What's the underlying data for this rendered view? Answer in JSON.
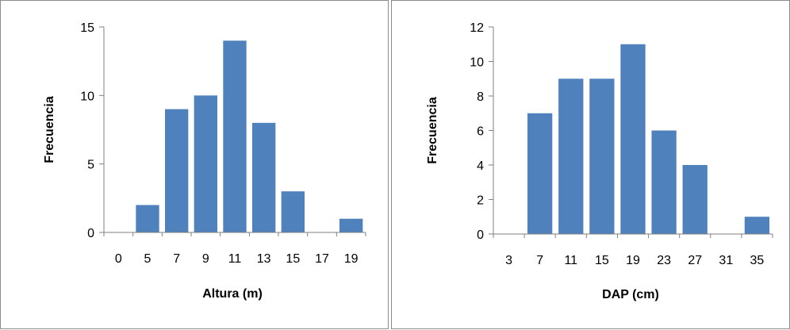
{
  "chart_data": [
    {
      "type": "bar",
      "categories": [
        "0",
        "5",
        "7",
        "9",
        "11",
        "13",
        "15",
        "17",
        "19"
      ],
      "values": [
        0,
        2,
        9,
        10,
        14,
        8,
        3,
        0,
        1
      ],
      "xlabel": "Altura (m)",
      "ylabel": "Frecuencia",
      "ylim": [
        0,
        15
      ],
      "yticks": [
        "0",
        "5",
        "10",
        "15"
      ],
      "grid": false,
      "legend": "none",
      "bar_color": "#4f81bd"
    },
    {
      "type": "bar",
      "categories": [
        "3",
        "7",
        "11",
        "15",
        "19",
        "23",
        "27",
        "31",
        "35"
      ],
      "values": [
        0,
        7,
        9,
        9,
        11,
        6,
        4,
        0,
        1
      ],
      "xlabel": "DAP (cm)",
      "ylabel": "Frecuencia",
      "ylim": [
        0,
        12
      ],
      "yticks": [
        "0",
        "2",
        "4",
        "6",
        "8",
        "10",
        "12"
      ],
      "grid": false,
      "legend": "none",
      "bar_color": "#4f81bd"
    }
  ]
}
